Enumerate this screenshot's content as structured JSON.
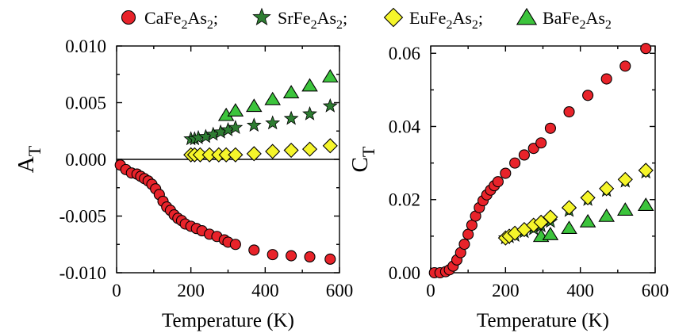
{
  "legend": [
    {
      "name": "CaFe",
      "sub1": "2",
      "mid": "As",
      "sub2": "2",
      "tail": ";",
      "marker": "circle",
      "color": "#e8232a"
    },
    {
      "name": "SrFe",
      "sub1": "2",
      "mid": "As",
      "sub2": "2",
      "tail": ";",
      "marker": "star",
      "color": "#2e7d32"
    },
    {
      "name": "EuFe",
      "sub1": "2",
      "mid": "As",
      "sub2": "2",
      "tail": ";",
      "marker": "diamond",
      "color": "#f5f52a"
    },
    {
      "name": "BaFe",
      "sub1": "2",
      "mid": "As",
      "sub2": "2",
      "tail": "",
      "marker": "triangle",
      "color": "#3cc43c"
    }
  ],
  "chart_data": [
    {
      "type": "scatter",
      "xlabel": "Temperature (K)",
      "ylabel_main": "A",
      "ylabel_sub": "T",
      "xlim": [
        0,
        600
      ],
      "ylim": [
        -0.01,
        0.01
      ],
      "xticks": [
        "0",
        "200",
        "400",
        "600"
      ],
      "yticks": [
        "-0.010",
        "-0.005",
        "0.000",
        "0.005",
        "0.010"
      ],
      "zero_line": true,
      "series": [
        {
          "name": "CaFe2As2",
          "marker": "circle",
          "color": "#e8232a",
          "points": [
            [
              10,
              -0.0005
            ],
            [
              25,
              -0.0009
            ],
            [
              40,
              -0.0012
            ],
            [
              55,
              -0.0013
            ],
            [
              65,
              -0.0015
            ],
            [
              75,
              -0.0017
            ],
            [
              85,
              -0.0019
            ],
            [
              95,
              -0.0022
            ],
            [
              105,
              -0.0026
            ],
            [
              115,
              -0.0031
            ],
            [
              125,
              -0.0037
            ],
            [
              135,
              -0.0042
            ],
            [
              145,
              -0.0045
            ],
            [
              155,
              -0.0049
            ],
            [
              165,
              -0.0052
            ],
            [
              175,
              -0.0054
            ],
            [
              185,
              -0.0057
            ],
            [
              200,
              -0.0059
            ],
            [
              215,
              -0.0061
            ],
            [
              230,
              -0.0063
            ],
            [
              250,
              -0.0066
            ],
            [
              270,
              -0.0068
            ],
            [
              290,
              -0.0071
            ],
            [
              300,
              -0.0073
            ],
            [
              320,
              -0.0075
            ],
            [
              370,
              -0.008
            ],
            [
              420,
              -0.0084
            ],
            [
              470,
              -0.0085
            ],
            [
              520,
              -0.0086
            ],
            [
              575,
              -0.0088
            ]
          ]
        },
        {
          "name": "SrFe2As2",
          "marker": "star",
          "color": "#2e7d32",
          "points": [
            [
              200,
              0.0018
            ],
            [
              210,
              0.0018
            ],
            [
              220,
              0.0019
            ],
            [
              240,
              0.002
            ],
            [
              260,
              0.0022
            ],
            [
              280,
              0.0024
            ],
            [
              300,
              0.0026
            ],
            [
              320,
              0.0028
            ],
            [
              370,
              0.003
            ],
            [
              420,
              0.0032
            ],
            [
              470,
              0.0036
            ],
            [
              520,
              0.004
            ],
            [
              575,
              0.0047
            ]
          ]
        },
        {
          "name": "EuFe2As2",
          "marker": "diamond",
          "color": "#f5f52a",
          "points": [
            [
              200,
              0.0004
            ],
            [
              210,
              0.0004
            ],
            [
              225,
              0.0004
            ],
            [
              250,
              0.0004
            ],
            [
              275,
              0.0004
            ],
            [
              295,
              0.0004
            ],
            [
              320,
              0.0004
            ],
            [
              370,
              0.0005
            ],
            [
              420,
              0.0007
            ],
            [
              470,
              0.0008
            ],
            [
              520,
              0.0009
            ],
            [
              575,
              0.0012
            ]
          ]
        },
        {
          "name": "BaFe2As2",
          "marker": "triangle",
          "color": "#3cc43c",
          "points": [
            [
              295,
              0.0039
            ],
            [
              320,
              0.0043
            ],
            [
              370,
              0.0047
            ],
            [
              420,
              0.0053
            ],
            [
              470,
              0.0059
            ],
            [
              520,
              0.0065
            ],
            [
              575,
              0.0073
            ]
          ]
        }
      ]
    },
    {
      "type": "scatter",
      "xlabel": "Temperature (K)",
      "ylabel_main": "C",
      "ylabel_sub": "T",
      "xlim": [
        0,
        600
      ],
      "ylim": [
        0,
        0.062
      ],
      "xticks": [
        "0",
        "200",
        "400",
        "600"
      ],
      "yticks": [
        "0.00",
        "0.02",
        "0.04",
        "0.06"
      ],
      "zero_line": false,
      "series": [
        {
          "name": "CaFe2As2",
          "marker": "circle",
          "color": "#e8232a",
          "points": [
            [
              10,
              0.0
            ],
            [
              25,
              0.0
            ],
            [
              40,
              0.0003
            ],
            [
              50,
              0.0008
            ],
            [
              60,
              0.0018
            ],
            [
              70,
              0.0035
            ],
            [
              80,
              0.0055
            ],
            [
              90,
              0.0078
            ],
            [
              100,
              0.0105
            ],
            [
              110,
              0.013
            ],
            [
              120,
              0.0155
            ],
            [
              130,
              0.0178
            ],
            [
              140,
              0.0197
            ],
            [
              150,
              0.0213
            ],
            [
              160,
              0.0226
            ],
            [
              170,
              0.0238
            ],
            [
              180,
              0.0249
            ],
            [
              200,
              0.0272
            ],
            [
              225,
              0.03
            ],
            [
              250,
              0.0322
            ],
            [
              275,
              0.034
            ],
            [
              295,
              0.0355
            ],
            [
              320,
              0.0395
            ],
            [
              370,
              0.044
            ],
            [
              420,
              0.0485
            ],
            [
              470,
              0.053
            ],
            [
              520,
              0.0565
            ],
            [
              575,
              0.0613
            ]
          ]
        },
        {
          "name": "SrFe2As2",
          "marker": "star",
          "color": "#2e7d32",
          "points": [
            [
              200,
              0.0095
            ],
            [
              210,
              0.0098
            ],
            [
              225,
              0.0102
            ],
            [
              250,
              0.0112
            ],
            [
              275,
              0.012
            ],
            [
              295,
              0.0128
            ],
            [
              320,
              0.014
            ],
            [
              370,
              0.017
            ],
            [
              420,
              0.02
            ],
            [
              470,
              0.0225
            ],
            [
              520,
              0.025
            ],
            [
              575,
              0.0275
            ]
          ]
        },
        {
          "name": "EuFe2As2",
          "marker": "diamond",
          "color": "#f5f52a",
          "points": [
            [
              200,
              0.0095
            ],
            [
              210,
              0.01
            ],
            [
              225,
              0.0108
            ],
            [
              250,
              0.0118
            ],
            [
              275,
              0.013
            ],
            [
              295,
              0.0138
            ],
            [
              320,
              0.0152
            ],
            [
              370,
              0.0178
            ],
            [
              420,
              0.0205
            ],
            [
              470,
              0.023
            ],
            [
              520,
              0.0255
            ],
            [
              575,
              0.028
            ]
          ]
        },
        {
          "name": "BaFe2As2",
          "marker": "triangle",
          "color": "#3cc43c",
          "points": [
            [
              295,
              0.01
            ],
            [
              320,
              0.0105
            ],
            [
              370,
              0.0122
            ],
            [
              420,
              0.014
            ],
            [
              470,
              0.0155
            ],
            [
              520,
              0.0172
            ],
            [
              575,
              0.0185
            ]
          ]
        }
      ]
    }
  ]
}
